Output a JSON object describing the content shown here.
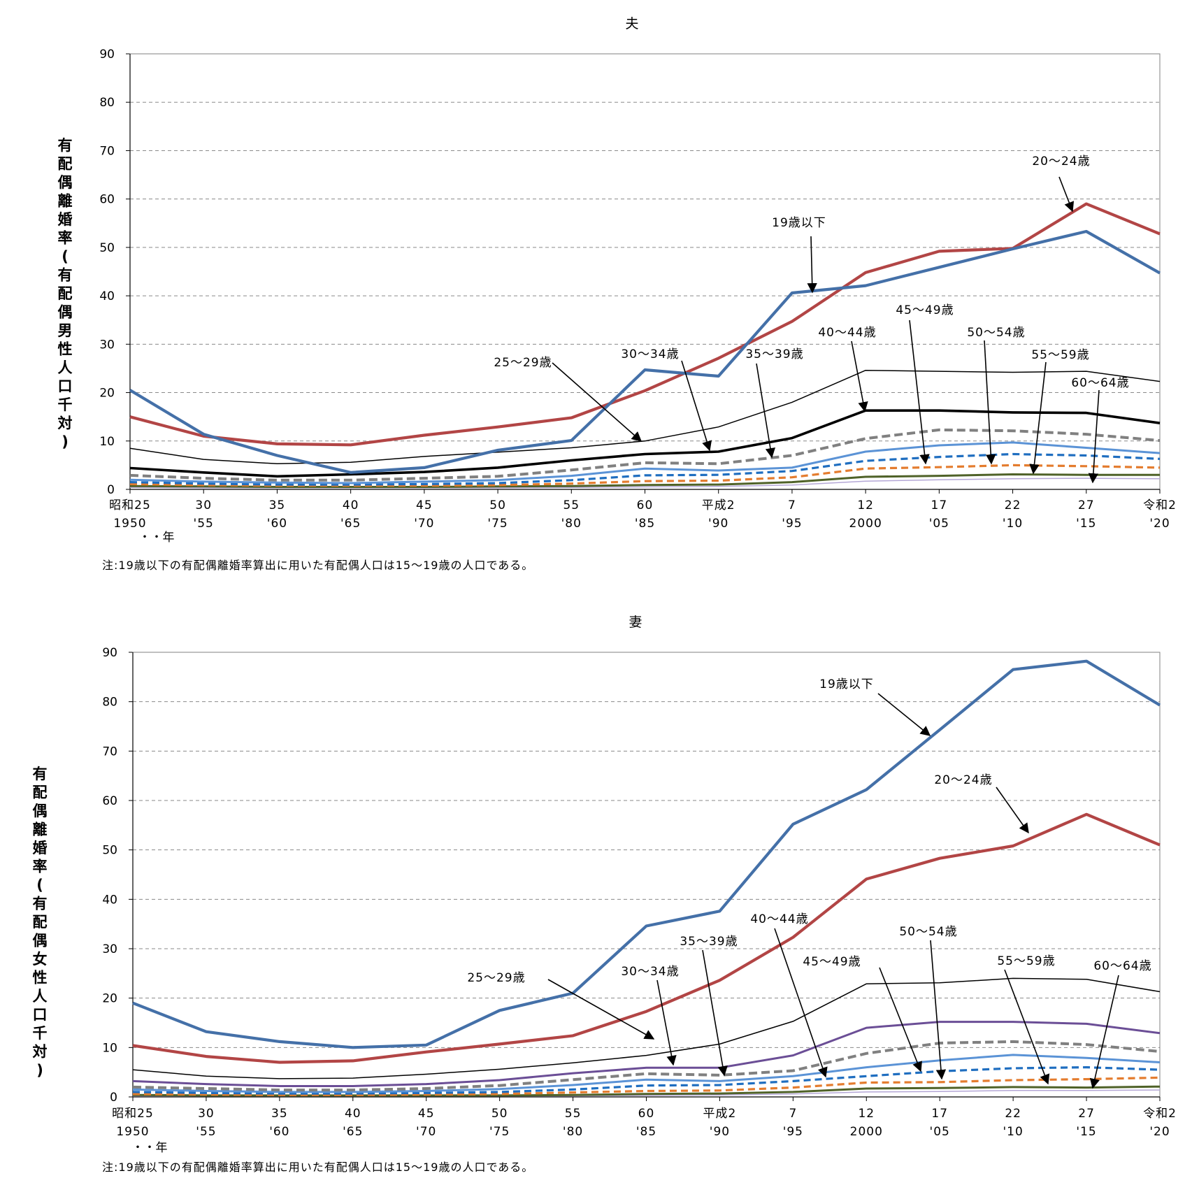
{
  "notes": {
    "husband": "注:19歳以下の有配偶離婚率算出に用いた有配偶人口は15～19歳の人口である。",
    "wife": "注:19歳以下の有配偶離婚率算出に用いた有配偶人口は15～19歳の人口である。"
  },
  "chart_data": [
    {
      "type": "line",
      "title": "夫",
      "ylabel": "有配偶離婚率(有配偶男性人口千対)",
      "xlabel": "年",
      "year_unit_label": "・・年",
      "ylim": [
        0,
        90
      ],
      "yticks": [
        0,
        10,
        20,
        30,
        40,
        50,
        60,
        70,
        80,
        90
      ],
      "grid": true,
      "categories_era": [
        "昭和25",
        "30",
        "35",
        "40",
        "45",
        "50",
        "55",
        "60",
        "平成2",
        "7",
        "12",
        "17",
        "22",
        "27",
        "令和2"
      ],
      "categories_year": [
        "1950",
        "'55",
        "'60",
        "'65",
        "'70",
        "'75",
        "'80",
        "'85",
        "'90",
        "'95",
        "2000",
        "'05",
        "'10",
        "'15",
        "'20"
      ],
      "series": [
        {
          "name": "19歳以下",
          "color": "#4470A8",
          "style": "solid-thick",
          "values": [
            20.5,
            11.4,
            7.0,
            3.5,
            4.5,
            8.1,
            10.1,
            24.7,
            23.4,
            40.6,
            42.1,
            45.9,
            49.7,
            53.3,
            44.7
          ]
        },
        {
          "name": "20～24歳",
          "color": "#B24545",
          "style": "solid-thick",
          "values": [
            15.0,
            11.0,
            9.4,
            9.2,
            11.2,
            12.9,
            14.8,
            20.4,
            27.1,
            34.7,
            44.8,
            49.2,
            49.8,
            59.0,
            52.8
          ]
        },
        {
          "name": "25～29歳",
          "color": "#000000",
          "style": "solid-thin",
          "values": [
            8.5,
            6.2,
            5.3,
            5.6,
            6.8,
            7.7,
            8.6,
            10.0,
            12.9,
            18.0,
            24.6,
            24.4,
            24.2,
            24.4,
            22.3
          ]
        },
        {
          "name": "30～34歳",
          "color": "#000000",
          "style": "solid-bold",
          "values": [
            4.4,
            3.5,
            2.7,
            3.1,
            3.6,
            4.5,
            6.0,
            7.3,
            7.8,
            10.6,
            16.3,
            16.3,
            15.9,
            15.8,
            13.7
          ]
        },
        {
          "name": "35～39歳",
          "color": "#808080",
          "style": "dashed-thick",
          "values": [
            2.9,
            2.3,
            1.9,
            1.9,
            2.3,
            2.7,
            4.0,
            5.5,
            5.3,
            7.0,
            10.5,
            12.3,
            12.1,
            11.4,
            10.1
          ]
        },
        {
          "name": "40～44歳",
          "color": "#5B93D6",
          "style": "solid-medium",
          "values": [
            2.0,
            1.6,
            1.4,
            1.3,
            1.6,
            1.9,
            2.8,
            4.3,
            3.9,
            4.5,
            7.8,
            9.1,
            9.7,
            8.6,
            7.5
          ]
        },
        {
          "name": "45～49歳",
          "color": "#1F6EC0",
          "style": "dashed-medium",
          "values": [
            1.5,
            1.2,
            1.0,
            1.0,
            1.1,
            1.3,
            1.9,
            2.9,
            3.0,
            3.8,
            5.9,
            6.7,
            7.3,
            7.0,
            6.3
          ]
        },
        {
          "name": "50～54歳",
          "color": "#E47C2E",
          "style": "dashed-medium",
          "values": [
            1.1,
            0.9,
            0.8,
            0.8,
            0.8,
            0.9,
            1.2,
            1.7,
            1.8,
            2.5,
            4.3,
            4.6,
            5.0,
            4.8,
            4.5
          ]
        },
        {
          "name": "55～59歳",
          "color": "#4F6228",
          "style": "solid-medium",
          "values": [
            0.7,
            0.6,
            0.5,
            0.5,
            0.5,
            0.6,
            0.7,
            0.9,
            1.0,
            1.5,
            2.6,
            2.8,
            3.1,
            3.0,
            3.0
          ]
        },
        {
          "name": "60～64歳",
          "color": "#B4A7D6",
          "style": "solid-thin",
          "values": [
            0.4,
            0.3,
            0.3,
            0.3,
            0.3,
            0.3,
            0.4,
            0.5,
            0.6,
            0.9,
            1.7,
            2.0,
            2.2,
            2.3,
            2.2
          ]
        }
      ],
      "annotations": [
        "19歳以下",
        "20～24歳",
        "25～29歳",
        "30～34歳",
        "35～39歳",
        "40～44歳",
        "45～49歳",
        "50～54歳",
        "55～59歳",
        "60～64歳"
      ]
    },
    {
      "type": "line",
      "title": "妻",
      "ylabel": "有配偶離婚率(有配偶女性人口千対)",
      "xlabel": "年",
      "year_unit_label": "・・年",
      "ylim": [
        0,
        90
      ],
      "yticks": [
        0,
        10,
        20,
        30,
        40,
        50,
        60,
        70,
        80,
        90
      ],
      "grid": true,
      "categories_era": [
        "昭和25",
        "30",
        "35",
        "40",
        "45",
        "50",
        "55",
        "60",
        "平成2",
        "7",
        "12",
        "17",
        "22",
        "27",
        "令和2"
      ],
      "categories_year": [
        "1950",
        "'55",
        "'60",
        "'65",
        "'70",
        "'75",
        "'80",
        "'85",
        "'90",
        "'95",
        "2000",
        "'05",
        "'10",
        "'15",
        "'20"
      ],
      "series": [
        {
          "name": "19歳以下",
          "color": "#4470A8",
          "style": "solid-thick",
          "values": [
            19.0,
            13.2,
            11.2,
            10.0,
            10.5,
            17.5,
            21.0,
            34.6,
            37.6,
            55.2,
            62.2,
            74.3,
            86.5,
            88.2,
            79.3
          ]
        },
        {
          "name": "20～24歳",
          "color": "#B24545",
          "style": "solid-thick",
          "values": [
            10.4,
            8.2,
            7.0,
            7.3,
            9.1,
            10.7,
            12.4,
            17.3,
            23.6,
            32.3,
            44.1,
            48.3,
            50.8,
            57.2,
            51.0
          ]
        },
        {
          "name": "25～29歳",
          "color": "#000000",
          "style": "solid-thin",
          "values": [
            5.5,
            4.2,
            3.7,
            3.8,
            4.6,
            5.6,
            6.9,
            8.4,
            10.7,
            15.3,
            22.9,
            23.1,
            24.0,
            23.8,
            21.3
          ]
        },
        {
          "name": "30～34歳",
          "color": "#6B4E96",
          "style": "solid-medium",
          "values": [
            3.2,
            2.6,
            2.2,
            2.2,
            2.6,
            3.4,
            4.8,
            5.9,
            5.9,
            8.4,
            14.0,
            15.2,
            15.2,
            14.8,
            12.9
          ]
        },
        {
          "name": "35～39歳",
          "color": "#808080",
          "style": "dashed-thick",
          "values": [
            2.0,
            1.7,
            1.4,
            1.4,
            1.7,
            2.3,
            3.5,
            4.7,
            4.4,
            5.3,
            8.8,
            10.9,
            11.2,
            10.6,
            9.2
          ]
        },
        {
          "name": "40～44歳",
          "color": "#5B93D6",
          "style": "solid-medium",
          "values": [
            1.5,
            1.2,
            1.0,
            1.0,
            1.2,
            1.6,
            2.4,
            3.5,
            3.2,
            4.2,
            6.0,
            7.4,
            8.5,
            7.9,
            7.0
          ]
        },
        {
          "name": "45～49歳",
          "color": "#1F6EC0",
          "style": "dashed-medium",
          "values": [
            1.0,
            0.8,
            0.7,
            0.7,
            0.8,
            1.0,
            1.5,
            2.3,
            2.4,
            3.2,
            4.2,
            5.2,
            5.8,
            6.0,
            5.5
          ]
        },
        {
          "name": "50～54歳",
          "color": "#E47C2E",
          "style": "dashed-medium",
          "values": [
            0.6,
            0.5,
            0.4,
            0.4,
            0.5,
            0.6,
            0.9,
            1.2,
            1.3,
            1.9,
            2.9,
            3.0,
            3.4,
            3.6,
            3.9
          ]
        },
        {
          "name": "55～59歳",
          "color": "#4F6228",
          "style": "solid-medium",
          "values": [
            0.4,
            0.3,
            0.3,
            0.3,
            0.3,
            0.3,
            0.4,
            0.6,
            0.7,
            1.0,
            1.7,
            1.8,
            2.0,
            1.9,
            2.1
          ]
        },
        {
          "name": "60～64歳",
          "color": "#B4A7D6",
          "style": "solid-thin",
          "values": [
            0.2,
            0.2,
            0.2,
            0.2,
            0.2,
            0.2,
            0.2,
            0.3,
            0.4,
            0.6,
            1.0,
            1.1,
            1.3,
            1.3,
            1.4
          ]
        }
      ],
      "annotations": [
        "19歳以下",
        "20～24歳",
        "25～29歳",
        "30～34歳",
        "35～39歳",
        "40～44歳",
        "45～49歳",
        "50～54歳",
        "55～59歳",
        "60～64歳"
      ]
    }
  ]
}
